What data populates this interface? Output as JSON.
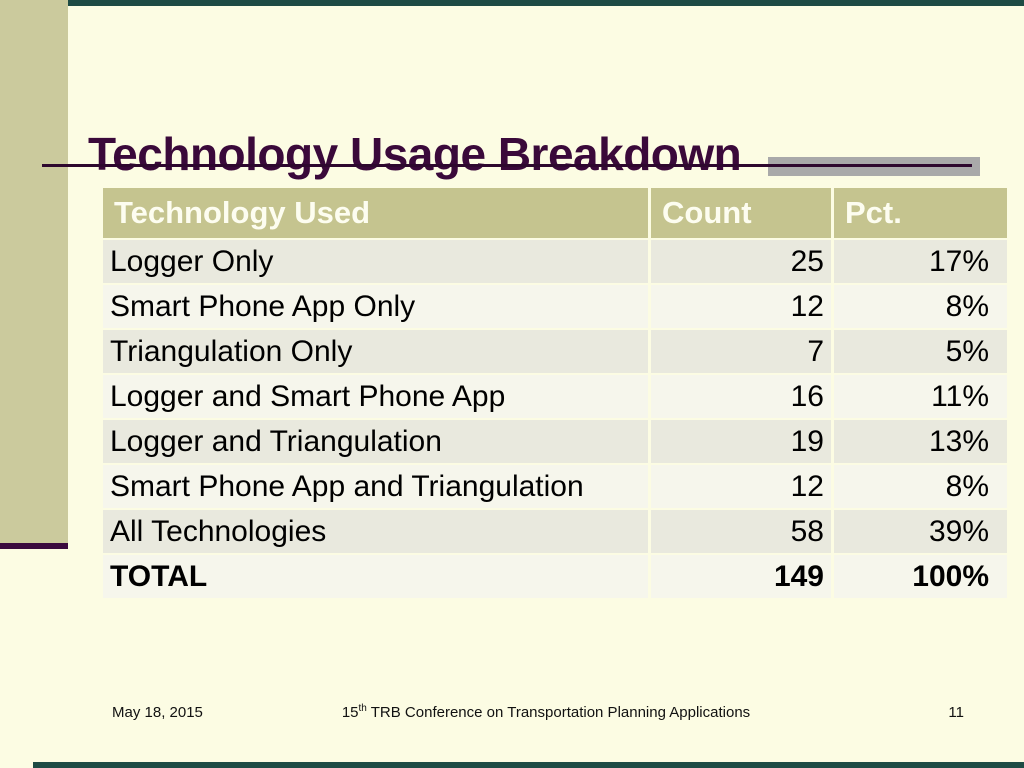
{
  "slide": {
    "title": "Technology Usage Breakdown",
    "colors": {
      "background": "#FCFCE3",
      "left_bar": "#CBCA9D",
      "edge_line": "#1E4B44",
      "purple_accent": "#3A093A",
      "header_bg": "#C5C48F",
      "header_text": "#FDFDF0",
      "row_odd_bg": "#E9E9DE",
      "row_even_bg": "#F6F6EC",
      "accent_rect": "#A9A9A9"
    },
    "table": {
      "headers": [
        "Technology Used",
        "Count",
        "Pct."
      ],
      "rows": [
        {
          "tech": "Logger Only",
          "count": "25",
          "pct": "17%"
        },
        {
          "tech": "Smart Phone App Only",
          "count": "12",
          "pct": "8%"
        },
        {
          "tech": "Triangulation Only",
          "count": "7",
          "pct": "5%"
        },
        {
          "tech": "Logger and Smart Phone App",
          "count": "16",
          "pct": "11%"
        },
        {
          "tech": "Logger and Triangulation",
          "count": "19",
          "pct": "13%"
        },
        {
          "tech": "Smart Phone App and Triangulation",
          "count": "12",
          "pct": "8%"
        },
        {
          "tech": "All Technologies",
          "count": "58",
          "pct": "39%"
        },
        {
          "tech": "TOTAL",
          "count": "149",
          "pct": "100%"
        }
      ]
    },
    "footer": {
      "date": "May 18, 2015",
      "conference_number": "15",
      "conference_ordinal": "th",
      "conference_name": "TRB Conference on Transportation Planning Applications",
      "page_number": "11"
    }
  },
  "chart_data": {
    "type": "table",
    "title": "Technology Usage Breakdown",
    "columns": [
      "Technology Used",
      "Count",
      "Pct."
    ],
    "rows": [
      [
        "Logger Only",
        25,
        "17%"
      ],
      [
        "Smart Phone App Only",
        12,
        "8%"
      ],
      [
        "Triangulation Only",
        7,
        "5%"
      ],
      [
        "Logger and Smart Phone App",
        16,
        "11%"
      ],
      [
        "Logger and Triangulation",
        19,
        "13%"
      ],
      [
        "Smart Phone App and Triangulation",
        12,
        "8%"
      ],
      [
        "All Technologies",
        58,
        "39%"
      ],
      [
        "TOTAL",
        149,
        "100%"
      ]
    ]
  }
}
